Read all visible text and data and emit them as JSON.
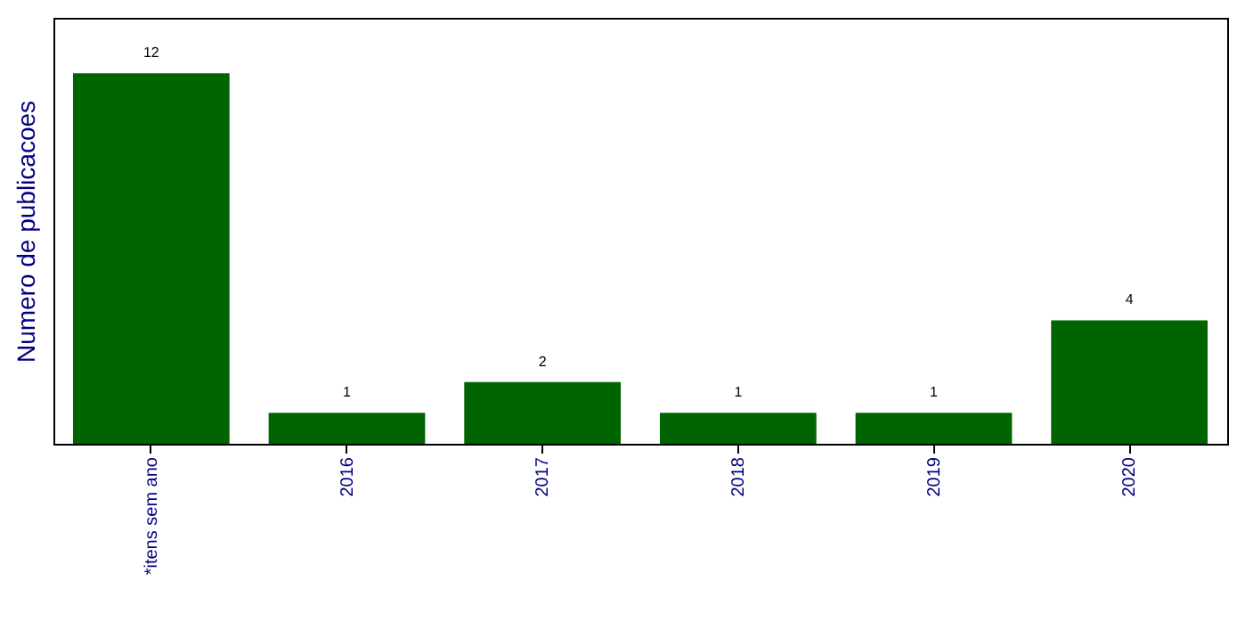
{
  "chart_data": {
    "type": "bar",
    "ylabel": "Numero de publicacoes",
    "categories": [
      "*itens sem ano",
      "2016",
      "2017",
      "2018",
      "2019",
      "2020"
    ],
    "values": [
      12,
      1,
      2,
      1,
      1,
      4
    ],
    "color": "#006400",
    "ylim": [
      0,
      13.8
    ],
    "data_labels": true,
    "tick_labels": "x"
  }
}
